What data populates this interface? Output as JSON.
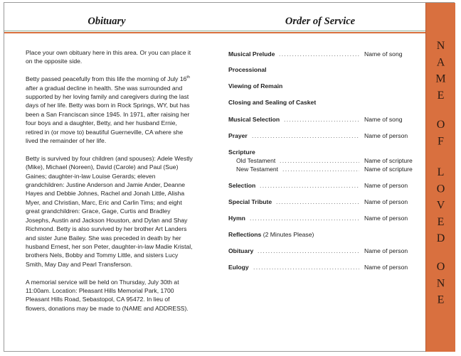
{
  "obituary": {
    "heading": "Obituary",
    "paragraphs": [
      [
        "Place your own obituary here in this area. Or you can place it",
        "on the opposite side."
      ],
      [
        {
          "text": "Betty passed peacefully from this life the morning of July 16",
          "sup": "th"
        },
        "after a gradual decline in health.  She was surrounded and",
        "supported by her loving family and caregivers during the last",
        "days of her life.  Betty was born in Rock Springs, WY, but has",
        "been a San Franciscan since 1945.  In 1971, after raising her",
        "four boys and a daughter, Betty, and her husband Ernie,",
        "retired in (or move to) beautiful Guerneville, CA where she",
        "lived the remainder of her life."
      ],
      [
        "Betty is survived by four children (and spouses): Adele Westly",
        "(Mike), Michael (Noreen), David (Carole) and Paul (Sue)",
        "Gaines;  daughter-in-law Louise Gerards;  eleven",
        "grandchildren: Justine Anderson and Jamie Ander, Deanne",
        "Hayes and Debbie Johnes, Rachel and Jonah Little, Alisha",
        "Myer, and Christian, Marc, Eric and Carlin Tims;  and eight",
        "great grandchildren: Grace, Gage, Curtis and Bradley",
        "Josephs, Austin and Jackson Houston, and Dylan and Shay",
        "Richmond.  Betty is also survived by her brother Art Landers",
        "and sister June Bailey.  She was preceded in death by her",
        "husband Ernest, her son Peter, daughter-in-law Madie Kristal,",
        "brothers Nels, Bobby and Tommy Little, and sisters Lucy",
        "Smith, May Day and Pearl Transferson."
      ],
      [
        "A memorial service will be held on Thursday, July 30th at",
        "11:00am.  Location:  Pleasant Hills Memorial Park, 1700",
        "Pleasant Hills Road, Sebastopol, CA 95472.  In lieu of",
        "flowers, donations may be made to (NAME and ADDRESS)."
      ]
    ]
  },
  "service": {
    "heading": "Order of Service",
    "items": [
      {
        "label": "Musical Prelude",
        "value": "Name of song",
        "dots": true
      },
      {
        "label": "Processional"
      },
      {
        "label": "Viewing of Remain"
      },
      {
        "label": "Closing and Sealing of Casket"
      },
      {
        "label": "Musical Selection",
        "value": "Name of song",
        "dots": true
      },
      {
        "label": "Prayer",
        "value": "Name of person",
        "dots": true
      },
      {
        "label": "Scripture"
      },
      {
        "label": "Old Testament",
        "value": "Name of scripture",
        "dots": true,
        "sub": true
      },
      {
        "label": "New Testament",
        "value": "Name of scripture",
        "dots": true,
        "sub": true
      },
      {
        "label": "Selection",
        "value": "Name of person",
        "dots": true
      },
      {
        "label": "Special Tribute",
        "value": "Name of person",
        "dots": true
      },
      {
        "label": "Hymn",
        "value": "Name of person",
        "dots": true
      },
      {
        "label": "Reflections",
        "note": " (2 Minutes Please)"
      },
      {
        "label": "Obituary",
        "value": "Name of person",
        "dots": true
      },
      {
        "label": "Eulogy",
        "value": "Name of person",
        "dots": true
      }
    ]
  },
  "sidebar": {
    "words": [
      "NAME",
      "OF",
      "LOVED",
      "ONE"
    ],
    "color": "#d9703f"
  }
}
